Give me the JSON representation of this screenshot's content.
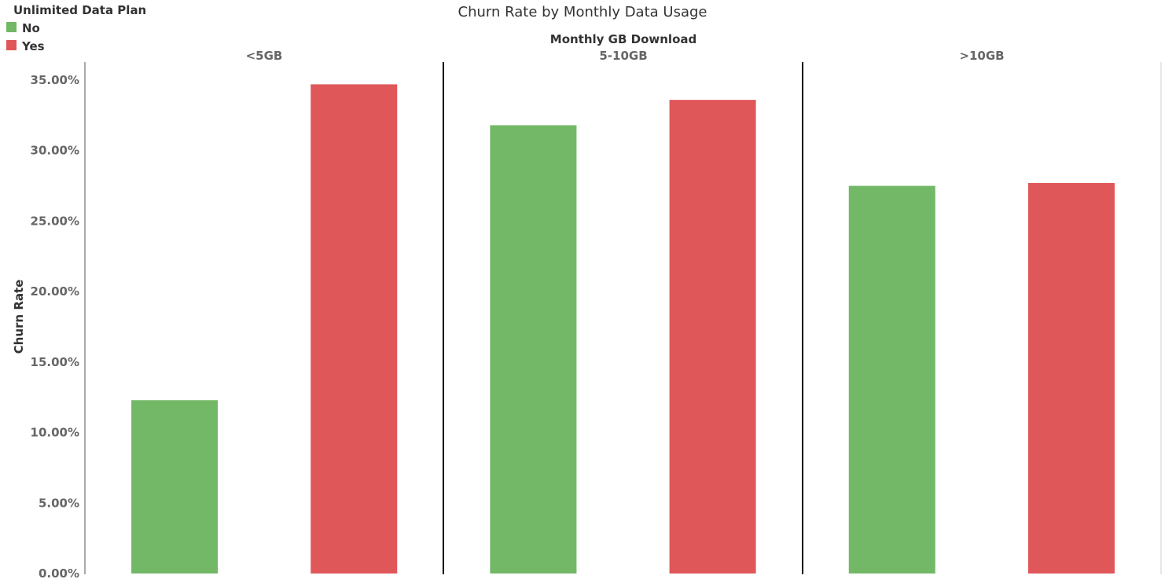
{
  "chart_data": {
    "type": "bar",
    "title": "Churn Rate by Monthly Data Usage",
    "column_header": "Monthly GB Download",
    "ylabel": "Churn Rate",
    "ylim": [
      0,
      0.35
    ],
    "y_ticks": [
      "0.00%",
      "5.00%",
      "10.00%",
      "15.00%",
      "20.00%",
      "25.00%",
      "30.00%",
      "35.00%"
    ],
    "y_tick_values": [
      0,
      0.05,
      0.1,
      0.15,
      0.2,
      0.25,
      0.3,
      0.35
    ],
    "legend": {
      "title": "Unlimited Data Plan",
      "placement": "top-left",
      "items": [
        {
          "label": "No",
          "color": "#73B866"
        },
        {
          "label": "Yes",
          "color": "#E05759"
        }
      ]
    },
    "panels": [
      {
        "label": "<5GB",
        "values": [
          0.123,
          0.347
        ]
      },
      {
        "label": "5-10GB",
        "values": [
          0.318,
          0.336
        ]
      },
      {
        "label": ">10GB",
        "values": [
          0.275,
          0.277
        ]
      }
    ],
    "grid": false
  }
}
